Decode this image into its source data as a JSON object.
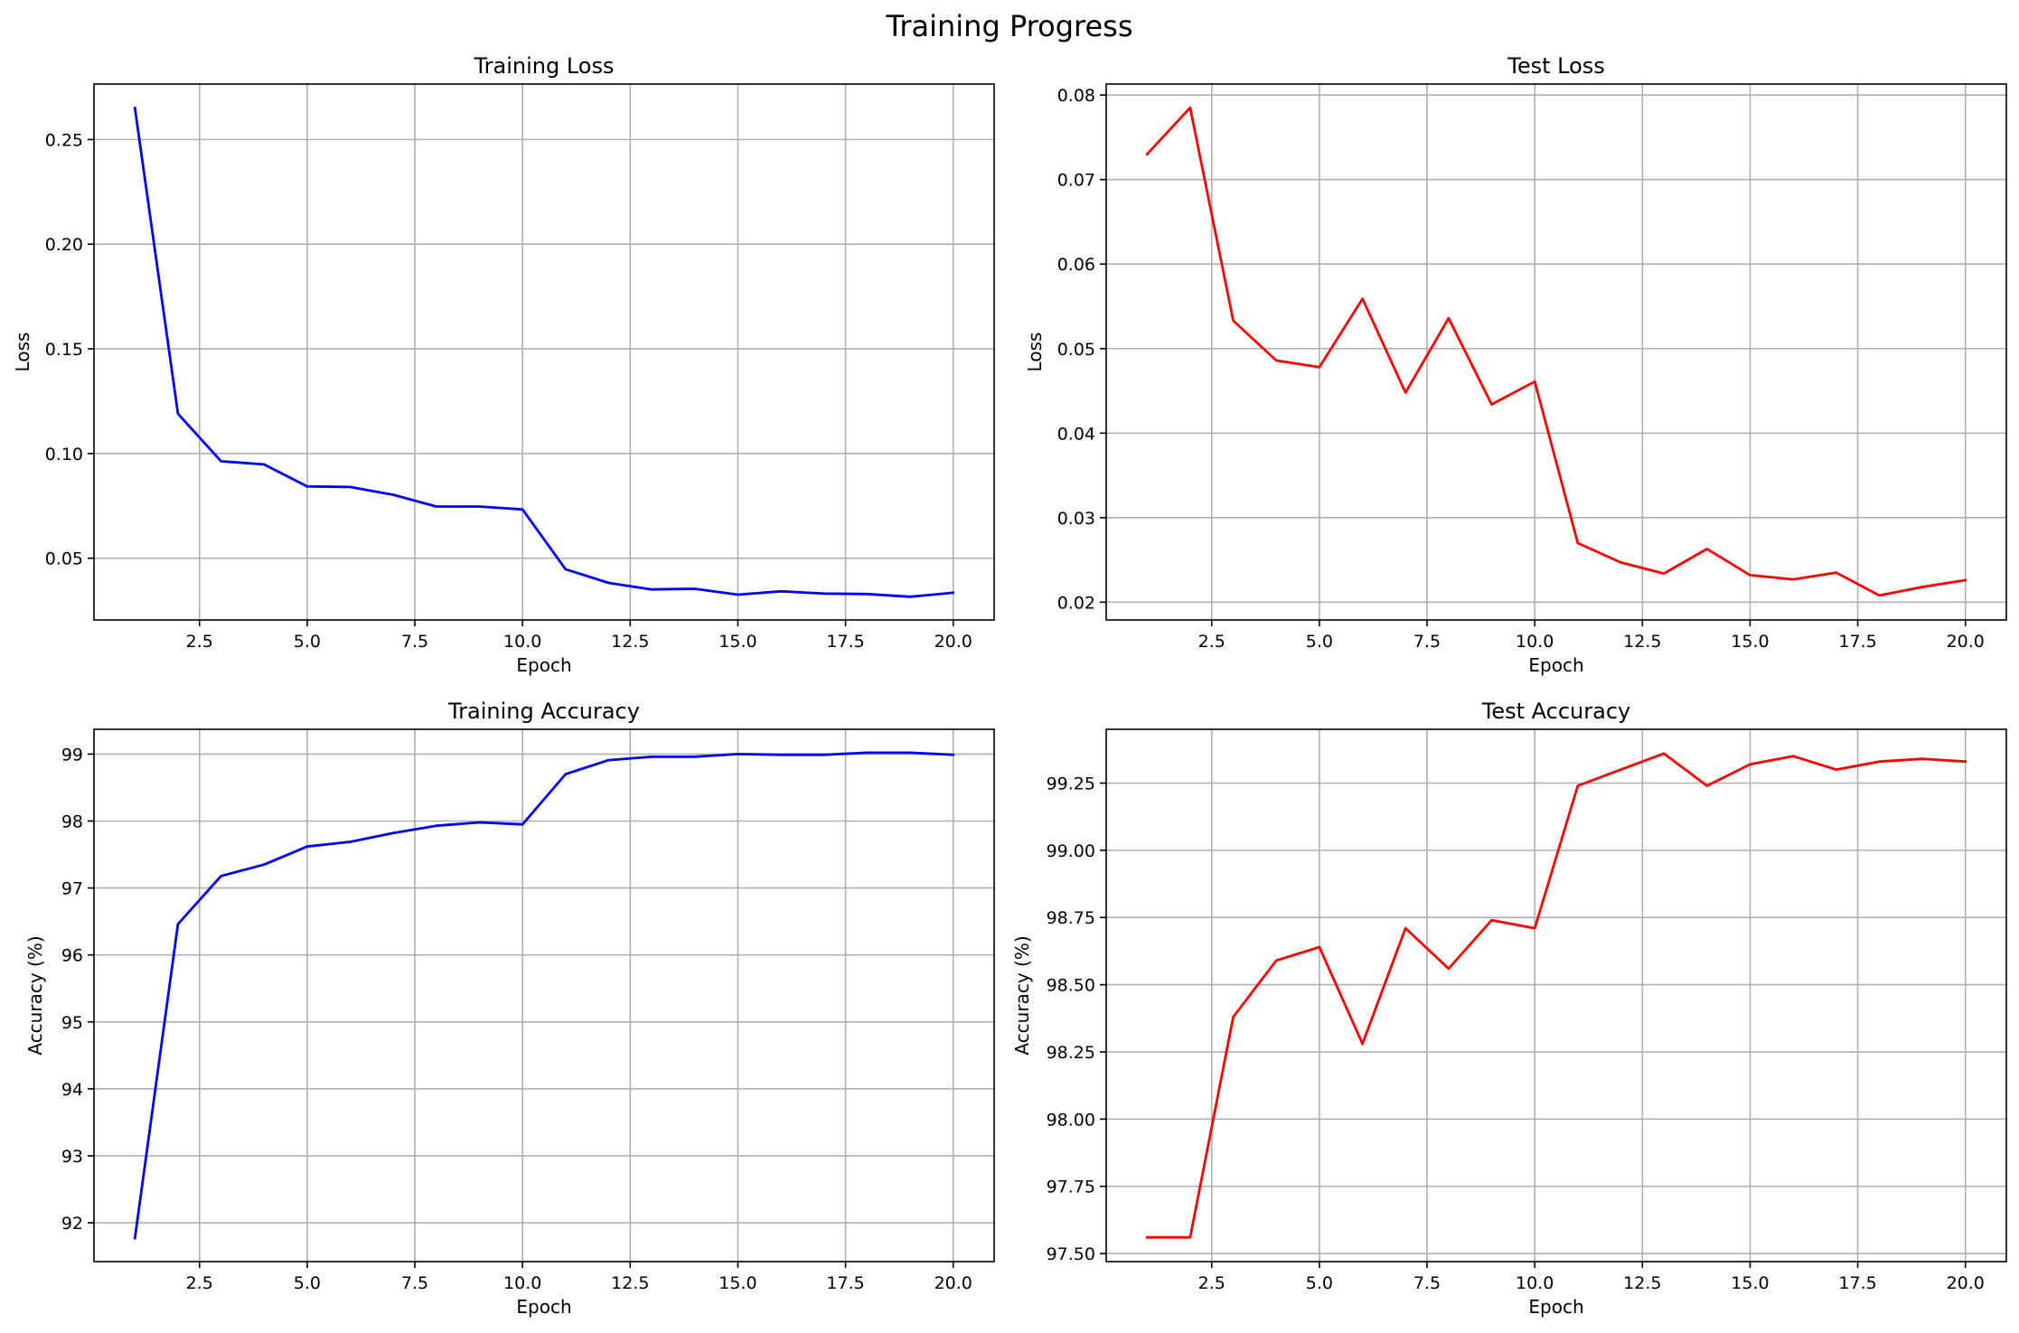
{
  "figure": {
    "title": "Training Progress"
  },
  "chart_data": [
    {
      "type": "line",
      "title": "Training Loss",
      "xlabel": "Epoch",
      "ylabel": "Loss",
      "xlim": [
        0.05,
        20.95
      ],
      "ylim": [
        0.0205,
        0.2765
      ],
      "xticks": [
        2.5,
        5.0,
        7.5,
        10.0,
        12.5,
        15.0,
        17.5,
        20.0
      ],
      "xtick_labels": [
        "2.5",
        "5.0",
        "7.5",
        "10.0",
        "12.5",
        "15.0",
        "17.5",
        "20.0"
      ],
      "yticks": [
        0.05,
        0.1,
        0.15,
        0.2,
        0.25
      ],
      "ytick_labels": [
        "0.05",
        "0.10",
        "0.15",
        "0.20",
        "0.25"
      ],
      "grid": true,
      "series": [
        {
          "color": "#0000ff",
          "x": [
            1,
            2,
            3,
            4,
            5,
            6,
            7,
            8,
            9,
            10,
            11,
            12,
            13,
            14,
            15,
            16,
            17,
            18,
            19,
            20
          ],
          "y": [
            0.265,
            0.119,
            0.0963,
            0.0948,
            0.0843,
            0.084,
            0.0803,
            0.0747,
            0.0747,
            0.0733,
            0.0447,
            0.0382,
            0.0351,
            0.0354,
            0.0326,
            0.0342,
            0.0331,
            0.0329,
            0.0316,
            0.0335
          ]
        }
      ]
    },
    {
      "type": "line",
      "title": "Test Loss",
      "xlabel": "Epoch",
      "ylabel": "Loss",
      "xlim": [
        0.05,
        20.95
      ],
      "ylim": [
        0.0179,
        0.0813
      ],
      "xticks": [
        2.5,
        5.0,
        7.5,
        10.0,
        12.5,
        15.0,
        17.5,
        20.0
      ],
      "xtick_labels": [
        "2.5",
        "5.0",
        "7.5",
        "10.0",
        "12.5",
        "15.0",
        "17.5",
        "20.0"
      ],
      "yticks": [
        0.02,
        0.03,
        0.04,
        0.05,
        0.06,
        0.07,
        0.08
      ],
      "ytick_labels": [
        "0.02",
        "0.03",
        "0.04",
        "0.05",
        "0.06",
        "0.07",
        "0.08"
      ],
      "grid": true,
      "series": [
        {
          "color": "#ff0000",
          "x": [
            1,
            2,
            3,
            4,
            5,
            6,
            7,
            8,
            9,
            10,
            11,
            12,
            13,
            14,
            15,
            16,
            17,
            18,
            19,
            20
          ],
          "y": [
            0.073,
            0.0785,
            0.0533,
            0.0486,
            0.0478,
            0.0559,
            0.0448,
            0.0536,
            0.0434,
            0.0461,
            0.027,
            0.0247,
            0.0234,
            0.0263,
            0.0232,
            0.0227,
            0.0235,
            0.0208,
            0.0218,
            0.0226
          ]
        }
      ]
    },
    {
      "type": "line",
      "title": "Training Accuracy",
      "xlabel": "Epoch",
      "ylabel": "Accuracy (%)",
      "xlim": [
        0.05,
        20.95
      ],
      "ylim": [
        91.42,
        99.37
      ],
      "xticks": [
        2.5,
        5.0,
        7.5,
        10.0,
        12.5,
        15.0,
        17.5,
        20.0
      ],
      "xtick_labels": [
        "2.5",
        "5.0",
        "7.5",
        "10.0",
        "12.5",
        "15.0",
        "17.5",
        "20.0"
      ],
      "yticks": [
        92,
        93,
        94,
        95,
        96,
        97,
        98,
        99
      ],
      "ytick_labels": [
        "92",
        "93",
        "94",
        "95",
        "96",
        "97",
        "98",
        "99"
      ],
      "grid": true,
      "series": [
        {
          "color": "#0000ff",
          "x": [
            1,
            2,
            3,
            4,
            5,
            6,
            7,
            8,
            9,
            10,
            11,
            12,
            13,
            14,
            15,
            16,
            17,
            18,
            19,
            20
          ],
          "y": [
            91.77,
            96.46,
            97.18,
            97.35,
            97.62,
            97.69,
            97.82,
            97.93,
            97.98,
            97.95,
            98.7,
            98.91,
            98.96,
            98.96,
            99.0,
            98.99,
            98.99,
            99.02,
            99.02,
            98.99
          ]
        }
      ]
    },
    {
      "type": "line",
      "title": "Test Accuracy",
      "xlabel": "Epoch",
      "ylabel": "Accuracy (%)",
      "xlim": [
        0.05,
        20.95
      ],
      "ylim": [
        97.47,
        99.45
      ],
      "xticks": [
        2.5,
        5.0,
        7.5,
        10.0,
        12.5,
        15.0,
        17.5,
        20.0
      ],
      "xtick_labels": [
        "2.5",
        "5.0",
        "7.5",
        "10.0",
        "12.5",
        "15.0",
        "17.5",
        "20.0"
      ],
      "yticks": [
        97.5,
        97.75,
        98.0,
        98.25,
        98.5,
        98.75,
        99.0,
        99.25
      ],
      "ytick_labels": [
        "97.50",
        "97.75",
        "98.00",
        "98.25",
        "98.50",
        "98.75",
        "99.00",
        "99.25"
      ],
      "grid": true,
      "series": [
        {
          "color": "#ff0000",
          "x": [
            1,
            2,
            3,
            4,
            5,
            6,
            7,
            8,
            9,
            10,
            11,
            12,
            13,
            14,
            15,
            16,
            17,
            18,
            19,
            20
          ],
          "y": [
            97.56,
            97.56,
            98.38,
            98.59,
            98.64,
            98.28,
            98.71,
            98.56,
            98.74,
            98.71,
            99.24,
            99.3,
            99.36,
            99.24,
            99.32,
            99.35,
            99.3,
            99.33,
            99.34,
            99.33
          ]
        }
      ]
    }
  ]
}
